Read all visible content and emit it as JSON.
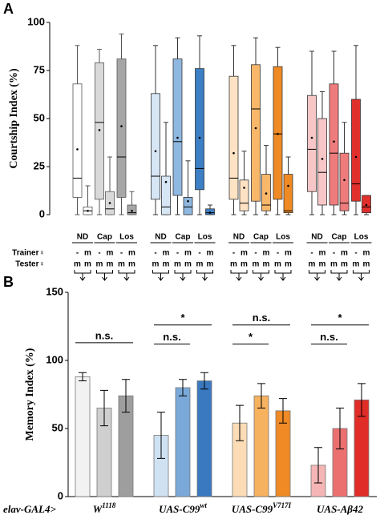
{
  "chart_data": [
    {
      "type": "boxplot",
      "panel": "A",
      "ylabel": "Courtship Index (%)",
      "ylim": [
        0,
        100
      ],
      "yticks": [
        0,
        25,
        50,
        75,
        100
      ],
      "conditions": [
        "ND",
        "Cap",
        "Los"
      ],
      "trainer_label": "Trainer♀",
      "tester_label": "Tester♀",
      "trainers": [
        "-",
        "m"
      ],
      "tester": "m",
      "colors": [
        "#ffffff",
        "#d9d9d9",
        "#a6a6a6",
        "#d6e6f5",
        "#8fb8e0",
        "#3d7fc4",
        "#fde3c3",
        "#f9b76a",
        "#f08a24",
        "#f7c6c6",
        "#ef7c7c",
        "#e0302b"
      ],
      "boxes": [
        {
          "min": 0,
          "q1": 9,
          "median": 19,
          "q3": 68,
          "max": 88,
          "mean": 34
        },
        {
          "min": 0,
          "q1": 0,
          "median": 2,
          "q3": 4,
          "max": 15,
          "mean": 2
        },
        {
          "min": 0,
          "q1": 8,
          "median": 48,
          "q3": 79,
          "max": 86,
          "mean": 44
        },
        {
          "min": 0,
          "q1": 0,
          "median": 3,
          "q3": 12,
          "max": 30,
          "mean": 6
        },
        {
          "min": 0,
          "q1": 9,
          "median": 30,
          "q3": 81,
          "max": 94,
          "mean": 46
        },
        {
          "min": 0,
          "q1": 0,
          "median": 1,
          "q3": 5,
          "max": 12,
          "mean": 2
        },
        {
          "min": 0,
          "q1": 8,
          "median": 20,
          "q3": 63,
          "max": 88,
          "mean": 33
        },
        {
          "min": 0,
          "q1": 0,
          "median": 4,
          "q3": 20,
          "max": 48,
          "mean": 17
        },
        {
          "min": 0,
          "q1": 10,
          "median": 38,
          "q3": 81,
          "max": 92,
          "mean": 40
        },
        {
          "min": 0,
          "q1": 0,
          "median": 4,
          "q3": 9,
          "max": 28,
          "mean": 7
        },
        {
          "min": 0,
          "q1": 13,
          "median": 24,
          "q3": 76,
          "max": 93,
          "mean": 40
        },
        {
          "min": 0,
          "q1": 0,
          "median": 1,
          "q3": 3,
          "max": 5,
          "mean": 1
        },
        {
          "min": 0,
          "q1": 8,
          "median": 19,
          "q3": 72,
          "max": 88,
          "mean": 32
        },
        {
          "min": 0,
          "q1": 2,
          "median": 6,
          "q3": 18,
          "max": 33,
          "mean": 14
        },
        {
          "min": 0,
          "q1": 7,
          "median": 55,
          "q3": 78,
          "max": 92,
          "mean": 45
        },
        {
          "min": 0,
          "q1": 2,
          "median": 5,
          "q3": 21,
          "max": 36,
          "mean": 11
        },
        {
          "min": 0,
          "q1": 8,
          "median": 42,
          "q3": 77,
          "max": 87,
          "mean": 42
        },
        {
          "min": 0,
          "q1": 1,
          "median": 2,
          "q3": 21,
          "max": 30,
          "mean": 15
        },
        {
          "min": 0,
          "q1": 12,
          "median": 34,
          "q3": 62,
          "max": 85,
          "mean": 40
        },
        {
          "min": 0,
          "q1": 5,
          "median": 22,
          "q3": 50,
          "max": 64,
          "mean": 29
        },
        {
          "min": 0,
          "q1": 5,
          "median": 32,
          "q3": 68,
          "max": 85,
          "mean": 38
        },
        {
          "min": 0,
          "q1": 2,
          "median": 6,
          "q3": 32,
          "max": 48,
          "mean": 18
        },
        {
          "min": 0,
          "q1": 7,
          "median": 16,
          "q3": 60,
          "max": 88,
          "mean": 30
        },
        {
          "min": 0,
          "q1": 1,
          "median": 4,
          "q3": 10,
          "max": 10,
          "mean": 5
        }
      ]
    },
    {
      "type": "bar",
      "panel": "B",
      "ylabel": "Memory Index (%)",
      "ylim": [
        0,
        150
      ],
      "yticks": [
        0,
        50,
        100,
        150
      ],
      "driver": "elav-GAL4>",
      "groups": [
        {
          "label": "W",
          "sup": "1118"
        },
        {
          "label": "UAS-C99",
          "sup": "wt"
        },
        {
          "label": "UAS-C99",
          "sup": "V717I"
        },
        {
          "label": "UAS-Aβ42"
        }
      ],
      "values": [
        88,
        65,
        74,
        45,
        80,
        85,
        54,
        74,
        63,
        23,
        50,
        71
      ],
      "errors": [
        3,
        13,
        12,
        17,
        6,
        6,
        13,
        9,
        9,
        13,
        15,
        12
      ],
      "colors": [
        "#f2f2f2",
        "#cfcfcf",
        "#9e9e9e",
        "#cfe2f3",
        "#7aa9d9",
        "#3a78bf",
        "#fcdcb6",
        "#f7b25f",
        "#ef8a25",
        "#f5b5b5",
        "#ec6f6f",
        "#e02d28"
      ],
      "annotations": [
        {
          "text": "n.s.",
          "bars": [
            0,
            2
          ],
          "y": 113
        },
        {
          "text": "*",
          "bars": [
            3,
            5
          ],
          "y": 126
        },
        {
          "text": "n.s.",
          "bars": [
            3,
            4
          ],
          "y": 112
        },
        {
          "text": "n.s.",
          "bars": [
            6,
            8
          ],
          "y": 126
        },
        {
          "text": "*",
          "bars": [
            6,
            7
          ],
          "y": 112
        },
        {
          "text": "*",
          "bars": [
            9,
            11
          ],
          "y": 126
        },
        {
          "text": "n.s.",
          "bars": [
            9,
            10
          ],
          "y": 112
        }
      ]
    }
  ]
}
